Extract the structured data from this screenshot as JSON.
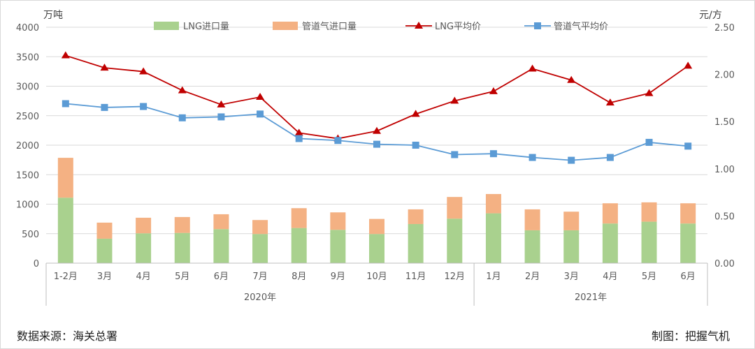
{
  "chart_data": {
    "type": "bar",
    "stacked": true,
    "title": "",
    "ylabel_left": "万吨",
    "ylabel_right": "元/方",
    "ylim_left": [
      0,
      4000
    ],
    "yticks_left": [
      "0",
      "500",
      "1000",
      "1500",
      "2000",
      "2500",
      "3000",
      "3500",
      "4000"
    ],
    "ylim_right": [
      0,
      2.5
    ],
    "yticks_right": [
      "0.00",
      "0.50",
      "1.00",
      "1.50",
      "2.00",
      "2.50"
    ],
    "grid": true,
    "legend_position": "top",
    "categories": [
      "1-2月",
      "3月",
      "4月",
      "5月",
      "6月",
      "7月",
      "8月",
      "9月",
      "10月",
      "11月",
      "12月",
      "1月",
      "2月",
      "3月",
      "4月",
      "5月",
      "6月"
    ],
    "groups": [
      {
        "label": "2020年",
        "count": 11
      },
      {
        "label": "2021年",
        "count": 6
      }
    ],
    "series": [
      {
        "name": "LNG进口量",
        "type": "bar",
        "axis": "left",
        "color": "#A9D18E",
        "values": [
          1110,
          415,
          506,
          513,
          577,
          494,
          596,
          565,
          494,
          663,
          755,
          845,
          557,
          557,
          672,
          703,
          672
        ]
      },
      {
        "name": "管道气进口量",
        "type": "bar",
        "axis": "left",
        "color": "#F4B183",
        "values": [
          676,
          272,
          264,
          269,
          252,
          237,
          336,
          296,
          256,
          249,
          367,
          327,
          355,
          316,
          343,
          328,
          343
        ]
      },
      {
        "name": "LNG平均价",
        "type": "line",
        "axis": "right",
        "color": "#C00000",
        "marker": "triangle",
        "values": [
          2.2,
          2.07,
          2.03,
          1.83,
          1.68,
          1.76,
          1.38,
          1.32,
          1.4,
          1.58,
          1.72,
          1.82,
          2.06,
          1.94,
          1.7,
          1.8,
          2.09
        ]
      },
      {
        "name": "管道气平均价",
        "type": "line",
        "axis": "right",
        "color": "#5B9BD5",
        "marker": "square",
        "values": [
          1.69,
          1.65,
          1.66,
          1.54,
          1.55,
          1.58,
          1.32,
          1.3,
          1.26,
          1.25,
          1.15,
          1.16,
          1.12,
          1.09,
          1.12,
          1.28,
          1.24
        ]
      }
    ]
  },
  "footer": {
    "source": "数据来源：海关总署",
    "credit": "制图：把握气机"
  }
}
